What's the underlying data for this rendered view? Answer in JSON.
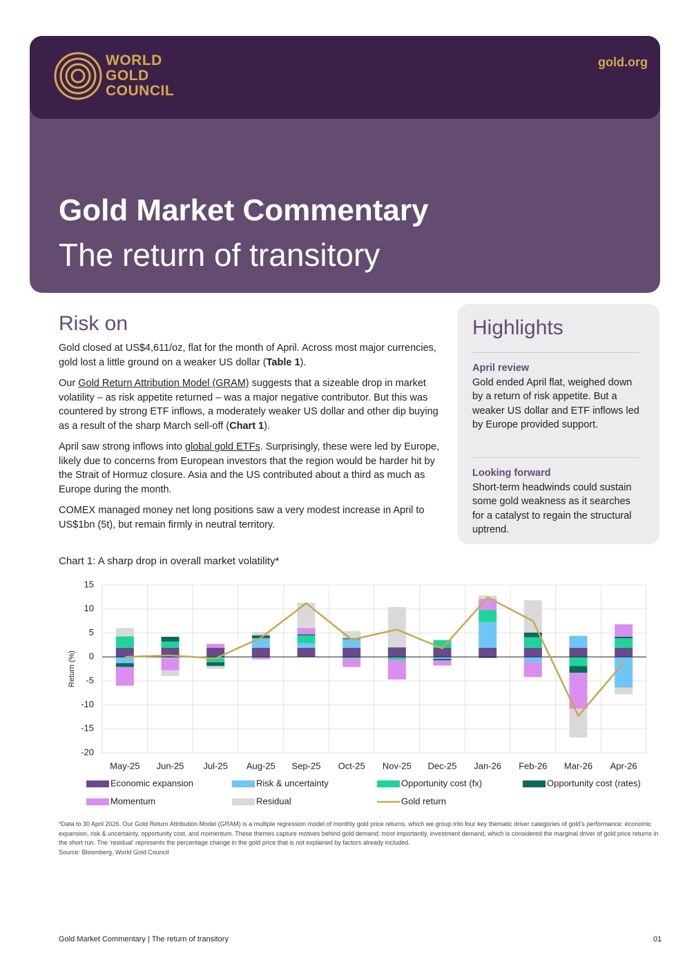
{
  "header": {
    "logo": [
      "WORLD",
      "GOLD",
      "COUNCIL"
    ],
    "site": "gold.org",
    "title": "Gold Market Commentary",
    "subtitle": "The return of transitory"
  },
  "section": {
    "heading": "Risk on",
    "paragraphs": [
      [
        {
          "text": "Gold closed at US$4,611/oz, flat for the month of April. Across most major currencies, gold lost a little ground on a weaker US dollar ("
        },
        {
          "text": "Table 1",
          "style": "bold"
        },
        {
          "text": ")."
        }
      ],
      [
        {
          "text": "Our "
        },
        {
          "text": "Gold Return Attribution Model (GRAM)",
          "style": "link"
        },
        {
          "text": " suggests that a sizeable drop in market volatility – as risk appetite returned – was a major negative contributor. But this was countered by strong ETF inflows, a moderately weaker US dollar and other dip buying as a result of the sharp March sell-off ("
        },
        {
          "text": "Chart 1",
          "style": "bold"
        },
        {
          "text": ")."
        }
      ],
      [
        {
          "text": "April saw strong inflows into "
        },
        {
          "text": "global gold ETFs",
          "style": "link"
        },
        {
          "text": ". Surprisingly, these were led by Europe, likely due to concerns from European investors that the region would be harder hit by the Strait of Hormuz closure. Asia and the US contributed about a third as much as Europe during the month."
        }
      ],
      [
        {
          "text": "COMEX managed money net long positions saw a very modest increase in April to US$1bn (5t), but remain firmly in neutral territory."
        }
      ]
    ]
  },
  "highlights": {
    "title": "Highlights",
    "items": [
      {
        "heading": "April review",
        "text": "Gold ended April flat, weighed down by a return of risk appetite. But a weaker US dollar and ETF inflows led by Europe provided support."
      },
      {
        "heading": "Looking forward",
        "text": "Short-term headwinds could sustain some gold weakness as it searches for a catalyst to regain the structural uptrend."
      }
    ]
  },
  "chart_data": {
    "type": "bar",
    "stacked": true,
    "title": "Chart 1: A sharp drop in overall market volatility*",
    "y_label": "Return (%)",
    "categories": [
      "May-25",
      "Jun-25",
      "Jul-25",
      "Aug-25",
      "Sep-25",
      "Oct-25",
      "Nov-25",
      "Dec-25",
      "Jan-26",
      "Feb-26",
      "Mar-26",
      "Apr-26"
    ],
    "ylim": [
      -20,
      15
    ],
    "yticks": [
      -20,
      -15,
      -10,
      -5,
      0,
      5,
      10,
      15
    ],
    "grid": true,
    "series": [
      {
        "name": "Economic expansion",
        "color": "#6b4a8c",
        "values": [
          1.9,
          1.9,
          1.9,
          1.9,
          1.9,
          1.9,
          2.0,
          1.9,
          1.9,
          1.9,
          1.9,
          1.9
        ]
      },
      {
        "name": "Risk & uncertainty",
        "color": "#6ec6f5",
        "values": [
          -1.3,
          -0.3,
          -0.3,
          2.0,
          1.0,
          1.8,
          0,
          -0.4,
          5.4,
          -1.1,
          2.5,
          -6.4
        ]
      },
      {
        "name": "Opportunity cost (fx)",
        "color": "#1ed49a",
        "values": [
          2.4,
          1.3,
          -0.8,
          0,
          1.6,
          -0.3,
          -0.6,
          1.6,
          2.5,
          2.2,
          -1.9,
          2.0
        ]
      },
      {
        "name": "Opportunity cost (rates)",
        "color": "#0b6b5a",
        "values": [
          -0.8,
          1.0,
          -0.8,
          0.6,
          0.2,
          0.2,
          0,
          -0.3,
          -0.2,
          1.0,
          -1.4,
          0.3
        ]
      },
      {
        "name": "Momentum",
        "color": "#d98ef0",
        "values": [
          -3.9,
          -2.5,
          0.8,
          -0.5,
          1.3,
          -1.8,
          -4.1,
          -1.1,
          2.3,
          -3.1,
          -7.5,
          2.6
        ]
      },
      {
        "name": "Residual",
        "color": "#d9d9d9",
        "values": [
          1.7,
          -1.2,
          -0.6,
          0.7,
          5.3,
          1.5,
          8.4,
          0,
          0.7,
          6.7,
          -6.0,
          -1.4
        ]
      },
      {
        "name": "Gold return",
        "color": "#c9a84c",
        "type": "line",
        "values": [
          0,
          0.3,
          -0.3,
          4.0,
          11.2,
          3.6,
          5.7,
          1.8,
          12.4,
          7.5,
          -12.3,
          -1.2
        ]
      }
    ]
  },
  "footnote": [
    "*Data to 30 April 2026. Our Gold Return Attribution Model (GRAM) is a multiple regression model of monthly gold price returns, which we group into four key thematic driver categories of gold’s performance: economic expansion, risk & uncertainty, opportunity cost, and momentum. These themes capture motives behind gold demand; most importantly, investment demand, which is considered the marginal driver of gold price returns in the short run. The ‘residual’ represents the percentage change in the gold price that is not explained by factors already included.",
    "Source: Bloomberg, World Gold Council"
  ],
  "footer": {
    "text": "Gold Market Commentary | The return of transitory",
    "page": "01"
  }
}
